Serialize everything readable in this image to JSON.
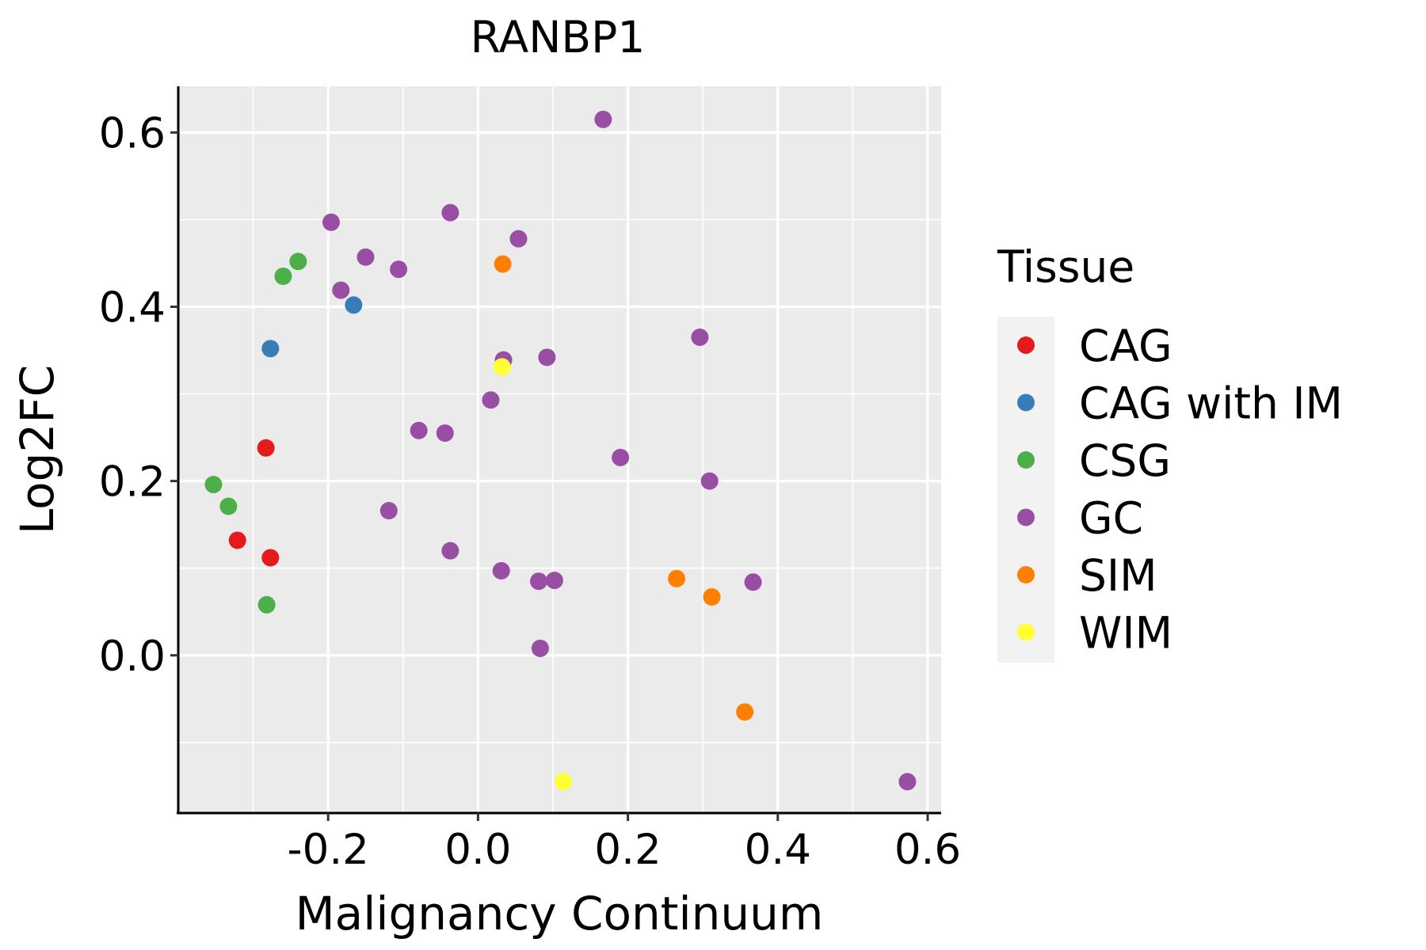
{
  "chart_data": {
    "type": "scatter",
    "title": "RANBP1",
    "xlabel": "Malignancy Continuum",
    "ylabel": "Log2FC",
    "xlim": [
      -0.4,
      0.618
    ],
    "ylim": [
      -0.181,
      0.653
    ],
    "xticks": [
      -0.2,
      0.0,
      0.2,
      0.4,
      0.6
    ],
    "xtick_labels": [
      "-0.2",
      "0.0",
      "0.2",
      "0.4",
      "0.6"
    ],
    "yticks": [
      0.0,
      0.2,
      0.4,
      0.6
    ],
    "ytick_labels": [
      "0.0",
      "0.2",
      "0.4",
      "0.6"
    ],
    "x_minor_gridlines": [
      -0.3,
      -0.1,
      0.1,
      0.3,
      0.5
    ],
    "y_minor_gridlines": [
      -0.1,
      0.1,
      0.3,
      0.5
    ],
    "grid": true,
    "background": "#EBEBEB",
    "legend": {
      "title": "Tissue",
      "position": "right"
    },
    "series": [
      {
        "name": "CAG",
        "color": "#E41A1C",
        "points": [
          [
            -0.283,
            0.238
          ],
          [
            -0.321,
            0.132
          ],
          [
            -0.277,
            0.112
          ]
        ]
      },
      {
        "name": "CAG with IM",
        "color": "#377EB8",
        "points": [
          [
            -0.277,
            0.352
          ],
          [
            -0.166,
            0.402
          ]
        ]
      },
      {
        "name": "CSG",
        "color": "#4DAF4A",
        "points": [
          [
            -0.24,
            0.452
          ],
          [
            -0.26,
            0.435
          ],
          [
            -0.353,
            0.196
          ],
          [
            -0.333,
            0.171
          ],
          [
            -0.282,
            0.058
          ]
        ]
      },
      {
        "name": "GC",
        "color": "#984EA3",
        "points": [
          [
            0.167,
            0.615
          ],
          [
            -0.037,
            0.508
          ],
          [
            -0.196,
            0.497
          ],
          [
            0.054,
            0.478
          ],
          [
            -0.15,
            0.457
          ],
          [
            -0.106,
            0.443
          ],
          [
            -0.183,
            0.419
          ],
          [
            0.296,
            0.365
          ],
          [
            0.034,
            0.339
          ],
          [
            0.092,
            0.342
          ],
          [
            0.017,
            0.293
          ],
          [
            -0.079,
            0.258
          ],
          [
            -0.044,
            0.255
          ],
          [
            0.19,
            0.227
          ],
          [
            0.309,
            0.2
          ],
          [
            -0.119,
            0.166
          ],
          [
            -0.037,
            0.12
          ],
          [
            0.031,
            0.097
          ],
          [
            0.081,
            0.085
          ],
          [
            0.102,
            0.086
          ],
          [
            0.367,
            0.084
          ],
          [
            0.083,
            0.008
          ],
          [
            0.573,
            -0.145
          ]
        ]
      },
      {
        "name": "SIM",
        "color": "#FF7F00",
        "points": [
          [
            0.033,
            0.449
          ],
          [
            0.265,
            0.088
          ],
          [
            0.312,
            0.067
          ],
          [
            0.356,
            -0.065
          ]
        ]
      },
      {
        "name": "WIM",
        "color": "#FFFF33",
        "points": [
          [
            0.032,
            0.331
          ],
          [
            0.114,
            -0.145
          ]
        ]
      }
    ]
  }
}
